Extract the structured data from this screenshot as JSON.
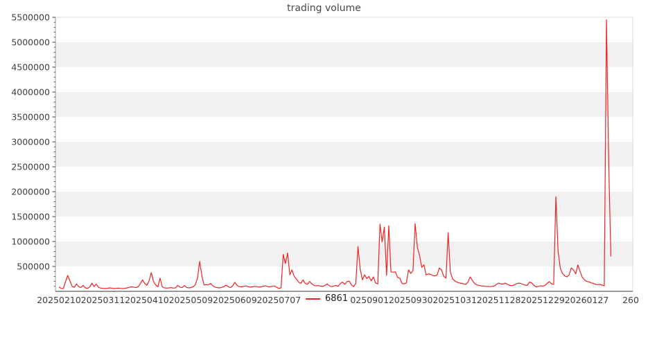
{
  "title": "trading volume",
  "legend": {
    "label": "6861"
  },
  "colors": {
    "line": "#ee2222",
    "band": "#f1f1f1",
    "spine_light": "#d9d9d9",
    "spine_left": "#9a9a9a",
    "spine_bottom": "#5a5a5a",
    "tick": "#444444",
    "tick_label": "#3d3d3d"
  },
  "chart_data": {
    "type": "line",
    "title": "trading volume",
    "xlabel": "",
    "ylabel": "",
    "grid": "alternating horizontal bands every 500000",
    "legend_position": "bottom center, below x-axis",
    "ylim": [
      0,
      5500000
    ],
    "y_major_step": 500000,
    "y_minor_step": 100000,
    "y_tick_labels": [
      "500000",
      "1000000",
      "1500000",
      "2000000",
      "2500000",
      "3000000",
      "3500000",
      "4000000",
      "4500000",
      "5000000",
      "5500000"
    ],
    "x_index_max": 260,
    "x_ticks": [
      {
        "i": 0,
        "label": "20250210"
      },
      {
        "i": 20,
        "label": "20250311"
      },
      {
        "i": 40,
        "label": "20250410"
      },
      {
        "i": 60,
        "label": "20250509"
      },
      {
        "i": 80,
        "label": "20250609"
      },
      {
        "i": 100,
        "label": "20250707"
      },
      {
        "i": 140,
        "label": "20250901"
      },
      {
        "i": 160,
        "label": "20250930"
      },
      {
        "i": 180,
        "label": "20251031"
      },
      {
        "i": 200,
        "label": "20251128"
      },
      {
        "i": 220,
        "label": "20251229"
      },
      {
        "i": 240,
        "label": "20260127"
      },
      {
        "i": 260,
        "label": "260"
      }
    ],
    "series": [
      {
        "name": "6861",
        "color": "#ee2222",
        "values": [
          90000,
          60000,
          55000,
          190000,
          320000,
          210000,
          100000,
          80000,
          150000,
          95000,
          75000,
          120000,
          70000,
          60000,
          85000,
          165000,
          95000,
          145000,
          80000,
          65000,
          60000,
          55000,
          60000,
          70000,
          65000,
          55000,
          60000,
          65000,
          60000,
          55000,
          60000,
          70000,
          80000,
          90000,
          85000,
          75000,
          90000,
          150000,
          230000,
          160000,
          120000,
          210000,
          375000,
          200000,
          130000,
          90000,
          265000,
          90000,
          70000,
          65000,
          70000,
          75000,
          65000,
          70000,
          120000,
          85000,
          75000,
          115000,
          80000,
          70000,
          75000,
          90000,
          130000,
          260000,
          600000,
          310000,
          130000,
          135000,
          130000,
          160000,
          110000,
          85000,
          75000,
          70000,
          80000,
          95000,
          125000,
          95000,
          75000,
          110000,
          180000,
          120000,
          95000,
          90000,
          100000,
          110000,
          95000,
          85000,
          90000,
          100000,
          95000,
          85000,
          90000,
          105000,
          110000,
          95000,
          90000,
          100000,
          110000,
          80000,
          60000,
          70000,
          740000,
          560000,
          770000,
          330000,
          430000,
          300000,
          250000,
          185000,
          160000,
          230000,
          160000,
          140000,
          200000,
          150000,
          120000,
          110000,
          115000,
          105000,
          100000,
          120000,
          150000,
          110000,
          95000,
          105000,
          120000,
          100000,
          160000,
          185000,
          140000,
          195000,
          205000,
          130000,
          95000,
          160000,
          900000,
          450000,
          230000,
          330000,
          255000,
          300000,
          210000,
          290000,
          170000,
          150000,
          1350000,
          990000,
          1290000,
          320000,
          1320000,
          390000,
          385000,
          390000,
          280000,
          265000,
          160000,
          150000,
          170000,
          430000,
          360000,
          420000,
          1360000,
          880000,
          720000,
          480000,
          530000,
          330000,
          350000,
          340000,
          320000,
          310000,
          330000,
          470000,
          430000,
          300000,
          265000,
          1180000,
          390000,
          250000,
          210000,
          185000,
          170000,
          160000,
          150000,
          140000,
          185000,
          290000,
          220000,
          160000,
          130000,
          120000,
          110000,
          105000,
          100000,
          100000,
          95000,
          100000,
          105000,
          140000,
          165000,
          150000,
          145000,
          165000,
          140000,
          120000,
          115000,
          125000,
          150000,
          165000,
          160000,
          140000,
          125000,
          120000,
          185000,
          170000,
          120000,
          90000,
          100000,
          110000,
          105000,
          120000,
          160000,
          195000,
          150000,
          140000,
          1900000,
          800000,
          460000,
          360000,
          310000,
          290000,
          330000,
          470000,
          430000,
          350000,
          530000,
          400000,
          280000,
          230000,
          200000,
          190000,
          170000,
          160000,
          140000,
          135000,
          140000,
          125000,
          110000,
          5450000,
          2600000,
          700000
        ]
      }
    ]
  }
}
